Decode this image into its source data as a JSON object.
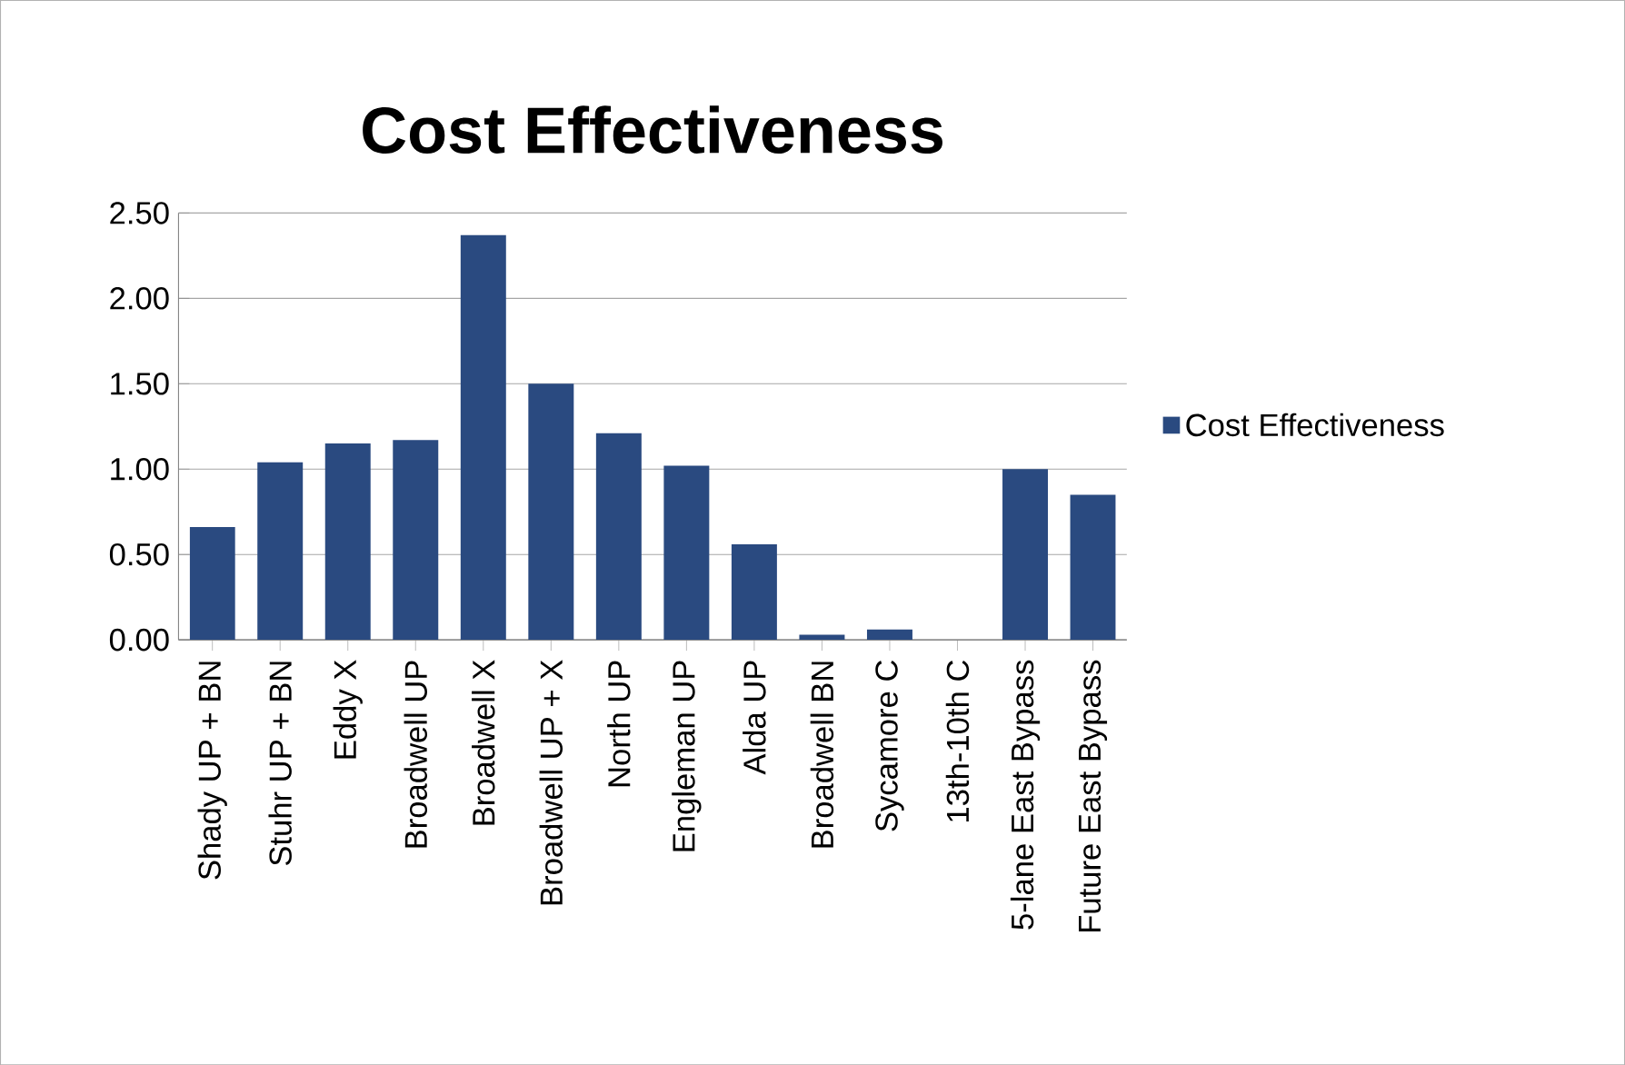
{
  "chart_data": {
    "type": "bar",
    "title": "Cost Effectiveness",
    "categories": [
      "Shady UP + BN",
      "Stuhr UP + BN",
      "Eddy X",
      "Broadwell UP",
      "Broadwell X",
      "Broadwell UP + X",
      "North UP",
      "Engleman UP",
      "Alda UP",
      "Broadwell BN",
      "Sycamore C",
      "13th-10th C",
      "5-lane East Bypass",
      "Future East Bypass"
    ],
    "series": [
      {
        "name": "Cost Effectiveness",
        "color": "#2a4a80",
        "values": [
          0.66,
          1.04,
          1.15,
          1.17,
          2.37,
          1.5,
          1.21,
          1.02,
          0.56,
          0.03,
          0.06,
          0,
          1.0,
          0.85
        ]
      }
    ],
    "ylim": [
      0,
      2.5
    ],
    "yticks": [
      {
        "value": 0,
        "label": "0.00"
      },
      {
        "value": 0.5,
        "label": "0.50"
      },
      {
        "value": 1,
        "label": "1.00"
      },
      {
        "value": 1.5,
        "label": "1.50"
      },
      {
        "value": 2,
        "label": "2.00"
      },
      {
        "value": 2.5,
        "label": "2.50"
      }
    ],
    "grid": "y",
    "legend": "right"
  }
}
